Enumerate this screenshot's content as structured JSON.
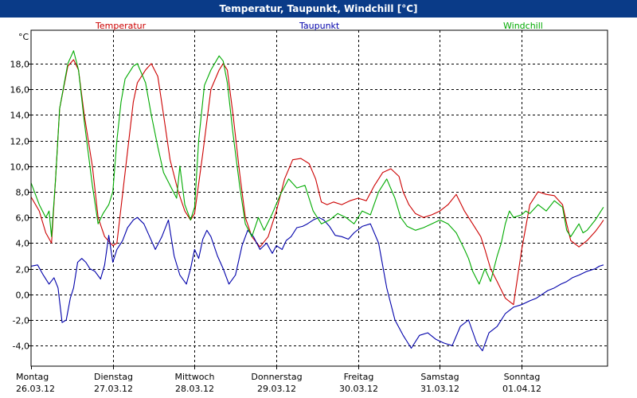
{
  "window": {
    "title": "Temperatur, Taupunkt, Windchill [°C]"
  },
  "chart_data": {
    "type": "line",
    "title": "Temperatur, Taupunkt, Windchill [°C]",
    "ylabel": "°C",
    "ylim": [
      -5.6,
      20.6
    ],
    "xlim": [
      0,
      7.05
    ],
    "grid": true,
    "yticks": [
      18.0,
      16.0,
      14.0,
      12.0,
      10.0,
      8.0,
      6.0,
      4.0,
      2.0,
      0.0,
      -2.0,
      -4.0
    ],
    "ytick_labels": [
      "18,0",
      "16,0",
      "14,0",
      "12,0",
      "10,0",
      "8,0",
      "6,0",
      "4,0",
      "2,0",
      "0,0",
      "-2,0",
      "-4,0"
    ],
    "xticks": [
      {
        "day": "Montag",
        "date": "26.03.12"
      },
      {
        "day": "Dienstag",
        "date": "27.03.12"
      },
      {
        "day": "Mittwoch",
        "date": "28.03.12"
      },
      {
        "day": "Donnerstag",
        "date": "29.03.12"
      },
      {
        "day": "Freitag",
        "date": "30.03.12"
      },
      {
        "day": "Samstag",
        "date": "31.03.12"
      },
      {
        "day": "Sonntag",
        "date": "01.04.12"
      }
    ],
    "legend": [
      "Temperatur",
      "Taupunkt",
      "Windchill"
    ],
    "series": [
      {
        "name": "Temperatur",
        "color": "#cc0000",
        "x": [
          0.0,
          0.1,
          0.18,
          0.25,
          0.3,
          0.35,
          0.45,
          0.52,
          0.58,
          0.65,
          0.75,
          0.82,
          0.9,
          1.0,
          1.05,
          1.15,
          1.25,
          1.3,
          1.4,
          1.47,
          1.55,
          1.62,
          1.7,
          1.8,
          1.88,
          1.95,
          2.0,
          2.1,
          2.2,
          2.3,
          2.35,
          2.4,
          2.47,
          2.55,
          2.62,
          2.7,
          2.8,
          2.9,
          3.0,
          3.1,
          3.2,
          3.3,
          3.4,
          3.48,
          3.55,
          3.62,
          3.7,
          3.8,
          3.9,
          4.0,
          4.1,
          4.2,
          4.3,
          4.4,
          4.5,
          4.55,
          4.62,
          4.7,
          4.8,
          4.9,
          5.0,
          5.1,
          5.2,
          5.3,
          5.4,
          5.5,
          5.55,
          5.62,
          5.7,
          5.8,
          5.9,
          6.0,
          6.1,
          6.2,
          6.3,
          6.4,
          6.5,
          6.55,
          6.6,
          6.7,
          6.8,
          6.9,
          6.97,
          7.0
        ],
        "y": [
          7.6,
          6.5,
          4.8,
          4.0,
          9.0,
          14.5,
          17.8,
          18.3,
          17.5,
          14.0,
          10.0,
          6.0,
          4.5,
          3.8,
          4.0,
          9.5,
          15.0,
          16.5,
          17.5,
          18.0,
          17.0,
          14.0,
          10.5,
          8.0,
          6.5,
          5.8,
          6.3,
          11.0,
          16.0,
          17.5,
          18.0,
          17.5,
          14.0,
          9.5,
          6.0,
          4.5,
          3.7,
          4.5,
          6.5,
          9.0,
          10.5,
          10.6,
          10.2,
          9.0,
          7.2,
          7.0,
          7.2,
          7.0,
          7.3,
          7.5,
          7.3,
          8.5,
          9.5,
          9.8,
          9.2,
          8.0,
          7.0,
          6.3,
          6.0,
          6.2,
          6.5,
          7.0,
          7.8,
          6.5,
          5.5,
          4.5,
          3.5,
          2.0,
          1.0,
          -0.3,
          -0.8,
          3.5,
          7.0,
          8.0,
          7.8,
          7.7,
          7.0,
          5.5,
          4.2,
          3.7,
          4.2,
          4.9,
          5.5,
          5.8
        ]
      },
      {
        "name": "Taupunkt",
        "color": "#0000aa",
        "x": [
          0.0,
          0.08,
          0.15,
          0.22,
          0.28,
          0.33,
          0.38,
          0.43,
          0.48,
          0.52,
          0.57,
          0.62,
          0.67,
          0.72,
          0.78,
          0.85,
          0.9,
          0.95,
          1.0,
          1.05,
          1.12,
          1.18,
          1.25,
          1.3,
          1.38,
          1.45,
          1.52,
          1.6,
          1.68,
          1.75,
          1.82,
          1.9,
          1.95,
          2.0,
          2.05,
          2.1,
          2.15,
          2.2,
          2.28,
          2.35,
          2.42,
          2.5,
          2.58,
          2.65,
          2.72,
          2.8,
          2.88,
          2.95,
          3.0,
          3.07,
          3.12,
          3.18,
          3.25,
          3.32,
          3.38,
          3.45,
          3.52,
          3.58,
          3.65,
          3.72,
          3.8,
          3.88,
          3.95,
          4.05,
          4.15,
          4.25,
          4.35,
          4.45,
          4.55,
          4.65,
          4.75,
          4.85,
          4.95,
          5.05,
          5.15,
          5.25,
          5.35,
          5.45,
          5.52,
          5.6,
          5.7,
          5.8,
          5.9,
          6.0,
          6.1,
          6.18,
          6.25,
          6.32,
          6.4,
          6.48,
          6.55,
          6.62,
          6.7,
          6.8,
          6.9,
          6.95,
          7.0
        ],
        "y": [
          2.2,
          2.3,
          1.5,
          0.8,
          1.3,
          0.5,
          -2.2,
          -2.0,
          -0.3,
          0.5,
          2.5,
          2.8,
          2.5,
          2.0,
          1.8,
          1.2,
          2.3,
          4.6,
          2.5,
          3.5,
          4.2,
          5.2,
          5.8,
          6.0,
          5.5,
          4.5,
          3.5,
          4.5,
          5.8,
          3.0,
          1.5,
          0.8,
          2.0,
          3.5,
          2.8,
          4.3,
          5.0,
          4.5,
          3.0,
          2.0,
          0.8,
          1.5,
          3.8,
          5.0,
          4.5,
          3.5,
          4.0,
          3.2,
          3.8,
          3.5,
          4.2,
          4.5,
          5.2,
          5.3,
          5.5,
          5.8,
          6.0,
          5.8,
          5.3,
          4.6,
          4.5,
          4.3,
          4.8,
          5.3,
          5.5,
          4.0,
          0.5,
          -2.0,
          -3.2,
          -4.2,
          -3.2,
          -3.0,
          -3.5,
          -3.8,
          -4.0,
          -2.5,
          -2.0,
          -3.8,
          -4.4,
          -3.0,
          -2.5,
          -1.5,
          -1.0,
          -0.8,
          -0.5,
          -0.3,
          0.0,
          0.3,
          0.5,
          0.8,
          1.0,
          1.3,
          1.5,
          1.8,
          2.0,
          2.2,
          2.3
        ]
      },
      {
        "name": "Windchill",
        "color": "#00aa00",
        "x": [
          0.0,
          0.1,
          0.18,
          0.22,
          0.25,
          0.3,
          0.35,
          0.45,
          0.52,
          0.58,
          0.65,
          0.75,
          0.82,
          0.88,
          0.95,
          1.0,
          1.05,
          1.1,
          1.15,
          1.25,
          1.3,
          1.4,
          1.47,
          1.55,
          1.62,
          1.7,
          1.78,
          1.82,
          1.88,
          1.95,
          2.0,
          2.05,
          2.12,
          2.2,
          2.3,
          2.35,
          2.4,
          2.47,
          2.55,
          2.62,
          2.7,
          2.78,
          2.85,
          2.95,
          3.05,
          3.15,
          3.25,
          3.35,
          3.45,
          3.55,
          3.65,
          3.75,
          3.85,
          3.95,
          4.05,
          4.15,
          4.25,
          4.35,
          4.45,
          4.52,
          4.6,
          4.7,
          4.8,
          4.9,
          5.0,
          5.1,
          5.2,
          5.3,
          5.35,
          5.4,
          5.48,
          5.55,
          5.62,
          5.7,
          5.75,
          5.8,
          5.85,
          5.9,
          6.0,
          6.05,
          6.1,
          6.2,
          6.3,
          6.4,
          6.5,
          6.55,
          6.6,
          6.7,
          6.75,
          6.8,
          6.9,
          6.97,
          7.0
        ],
        "y": [
          8.7,
          7.0,
          6.0,
          6.5,
          4.5,
          9.0,
          14.5,
          18.0,
          19.0,
          17.5,
          13.5,
          8.5,
          5.5,
          6.3,
          7.0,
          8.0,
          12.0,
          15.0,
          16.8,
          17.8,
          18.0,
          16.5,
          14.0,
          11.5,
          9.5,
          8.5,
          7.5,
          10.0,
          7.0,
          5.8,
          6.8,
          12.0,
          16.3,
          17.5,
          18.6,
          18.2,
          16.5,
          12.5,
          8.5,
          5.5,
          4.5,
          6.0,
          5.0,
          6.3,
          7.8,
          9.0,
          8.3,
          8.5,
          6.5,
          5.5,
          5.8,
          6.3,
          6.0,
          5.5,
          6.5,
          6.2,
          8.0,
          9.0,
          7.5,
          6.0,
          5.3,
          5.0,
          5.2,
          5.5,
          5.8,
          5.5,
          4.8,
          3.5,
          2.8,
          1.8,
          0.8,
          2.0,
          1.0,
          3.0,
          4.0,
          5.5,
          6.5,
          6.0,
          6.2,
          6.5,
          6.3,
          7.0,
          6.5,
          7.3,
          6.8,
          5.0,
          4.5,
          5.5,
          4.8,
          5.0,
          5.8,
          6.5,
          6.8
        ]
      }
    ]
  }
}
